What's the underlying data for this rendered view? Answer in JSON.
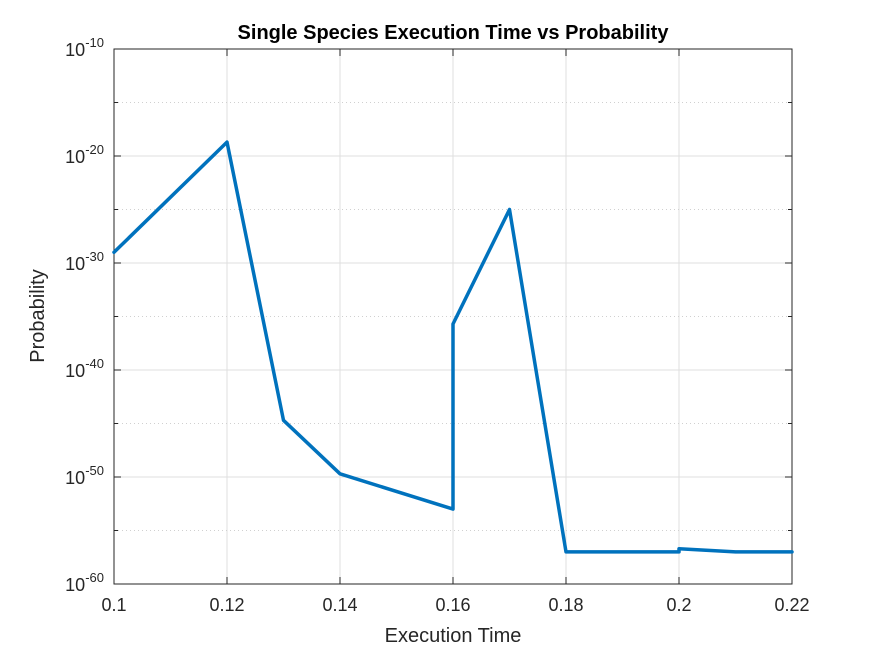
{
  "chart_data": {
    "type": "line",
    "title": "Single Species Execution Time vs Probability",
    "xlabel": "Execution Time",
    "ylabel": "Probability",
    "xlim": [
      0.1,
      0.22
    ],
    "ylim": [
      1e-60,
      1e-10
    ],
    "yscale": "log",
    "grid": true,
    "x_ticks": [
      {
        "value": 0.1,
        "label": "0.1"
      },
      {
        "value": 0.12,
        "label": "0.12"
      },
      {
        "value": 0.14,
        "label": "0.14"
      },
      {
        "value": 0.16,
        "label": "0.16"
      },
      {
        "value": 0.18,
        "label": "0.18"
      },
      {
        "value": 0.2,
        "label": "0.2"
      },
      {
        "value": 0.22,
        "label": "0.22"
      }
    ],
    "y_ticks": [
      {
        "exp": -60,
        "base": "10",
        "sup": "-60"
      },
      {
        "exp": -50,
        "base": "10",
        "sup": "-50"
      },
      {
        "exp": -40,
        "base": "10",
        "sup": "-40"
      },
      {
        "exp": -30,
        "base": "10",
        "sup": "-30"
      },
      {
        "exp": -20,
        "base": "10",
        "sup": "-20"
      },
      {
        "exp": -10,
        "base": "10",
        "sup": "-10"
      }
    ],
    "series": [
      {
        "color": "#0072BD",
        "x": [
          0.1,
          0.12,
          0.13,
          0.14,
          0.16,
          0.16,
          0.17,
          0.18,
          0.2,
          0.2,
          0.21,
          0.22
        ],
        "y": [
          1e-29,
          2e-19,
          2e-45,
          2e-50,
          1e-53,
          2e-36,
          1e-25,
          1e-57,
          1e-57,
          2e-57,
          1e-57,
          1e-57
        ]
      }
    ]
  }
}
